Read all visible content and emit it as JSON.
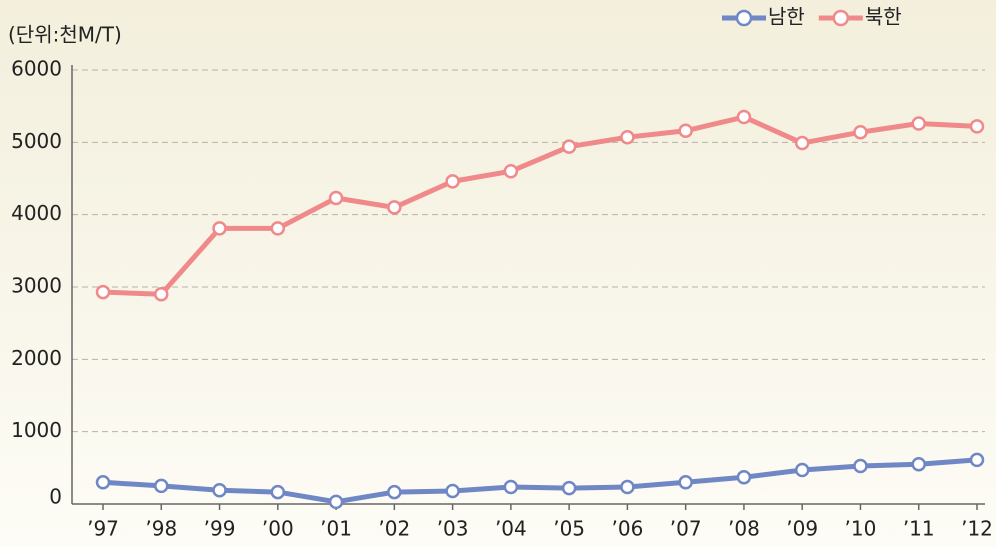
{
  "chart_data": {
    "type": "line",
    "subtitle": "(단위:천M/T)",
    "categories": [
      "’97",
      "’98",
      "’99",
      "’00",
      "’01",
      "’02",
      "’03",
      "’04",
      "’05",
      "’06",
      "’07",
      "’08",
      "’09",
      "’10",
      "’11",
      "’12"
    ],
    "series": [
      {
        "name": "남한",
        "color": "#6f87c4",
        "values": [
          300,
          250,
          190,
          165,
          30,
          165,
          180,
          235,
          220,
          235,
          300,
          370,
          470,
          525,
          550,
          610
        ]
      },
      {
        "name": "북한",
        "color": "#f08a8a",
        "values": [
          2930,
          2900,
          3810,
          3810,
          4230,
          4100,
          4460,
          4600,
          4940,
          5070,
          5160,
          5350,
          4990,
          5140,
          5260,
          5220
        ]
      }
    ],
    "ylim": [
      0,
      6000
    ],
    "yticks": [
      0,
      1000,
      2000,
      3000,
      4000,
      5000,
      6000
    ],
    "grid": true,
    "legend": "top-right"
  }
}
